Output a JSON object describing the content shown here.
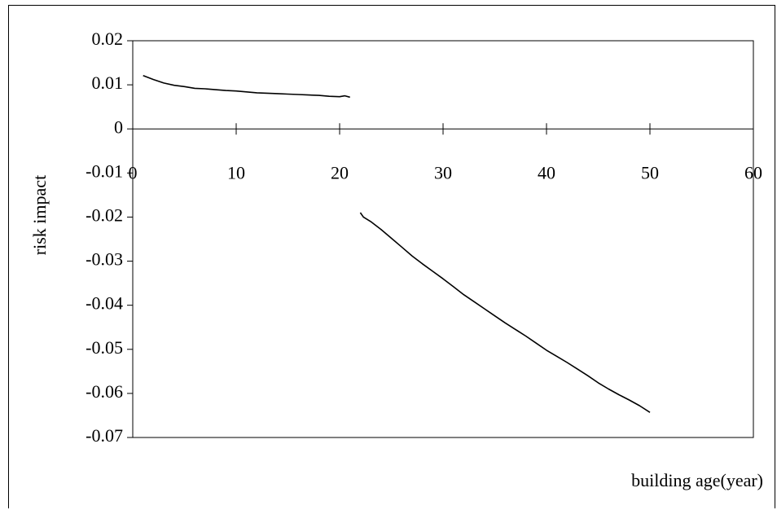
{
  "chart_data": {
    "type": "line",
    "title": "",
    "xlabel": "building age(year)",
    "ylabel": "risk impact",
    "xlim": [
      0,
      60
    ],
    "ylim": [
      -0.07,
      0.02
    ],
    "x_ticks": [
      0,
      10,
      20,
      30,
      40,
      50,
      60
    ],
    "x_tick_labels": [
      "0",
      "10",
      "20",
      "30",
      "40",
      "50",
      "60"
    ],
    "y_ticks": [
      0.02,
      0.01,
      0,
      -0.01,
      -0.02,
      -0.03,
      -0.04,
      -0.05,
      -0.06,
      -0.07
    ],
    "y_tick_labels": [
      "0.02",
      "0.01",
      "0",
      "-0.01",
      "-0.02",
      "-0.03",
      "-0.04",
      "-0.05",
      "-0.06",
      "-0.07"
    ],
    "grid": false,
    "legend": "none",
    "line_color": "#000000",
    "series": [
      {
        "x": [
          1,
          2,
          3,
          4,
          5,
          6,
          7,
          8,
          9,
          10,
          11,
          12,
          13,
          14,
          15,
          16,
          17,
          18,
          19,
          20,
          20.5,
          21
        ],
        "y": [
          0.0121,
          0.0112,
          0.0104,
          0.0099,
          0.0096,
          0.0092,
          0.0091,
          0.0089,
          0.0087,
          0.0086,
          0.0084,
          0.0082,
          0.0081,
          0.008,
          0.0079,
          0.0078,
          0.0077,
          0.0076,
          0.0074,
          0.0073,
          0.0075,
          0.0072
        ]
      },
      {
        "x": [
          22,
          22.3,
          23,
          24,
          25,
          26,
          27,
          28,
          29,
          30,
          31,
          32,
          33,
          34,
          35,
          36,
          37,
          38,
          39,
          40,
          41,
          42,
          43,
          44,
          45,
          46,
          47,
          48,
          49,
          50
        ],
        "y": [
          -0.019,
          -0.02,
          -0.021,
          -0.0228,
          -0.0248,
          -0.0268,
          -0.0288,
          -0.0306,
          -0.0323,
          -0.034,
          -0.0358,
          -0.0376,
          -0.0392,
          -0.0408,
          -0.0424,
          -0.044,
          -0.0455,
          -0.047,
          -0.0486,
          -0.0502,
          -0.0516,
          -0.053,
          -0.0545,
          -0.056,
          -0.0576,
          -0.059,
          -0.0603,
          -0.0615,
          -0.0628,
          -0.0643
        ]
      }
    ]
  }
}
